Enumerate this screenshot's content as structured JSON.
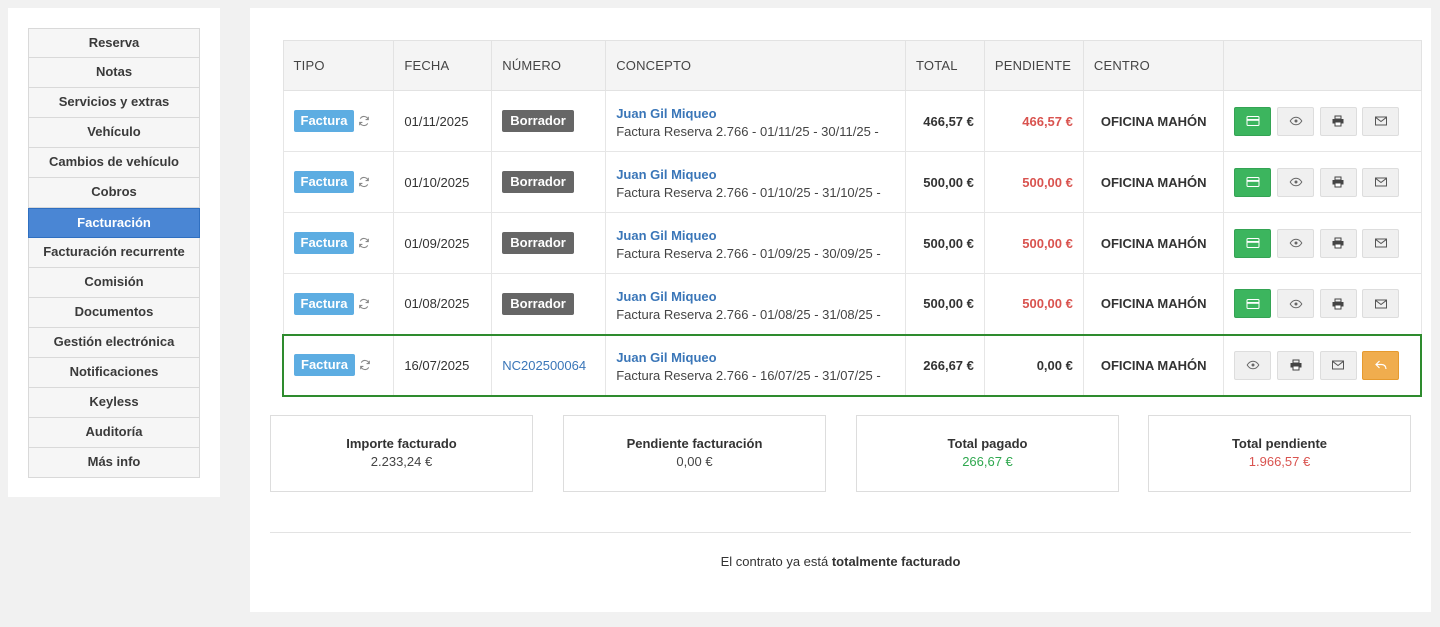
{
  "sidebar": {
    "items": [
      {
        "label": "Reserva",
        "active": false
      },
      {
        "label": "Notas",
        "active": false
      },
      {
        "label": "Servicios y extras",
        "active": false
      },
      {
        "label": "Vehículo",
        "active": false
      },
      {
        "label": "Cambios de vehículo",
        "active": false
      },
      {
        "label": "Cobros",
        "active": false
      },
      {
        "label": "Facturación",
        "active": true
      },
      {
        "label": "Facturación recurrente",
        "active": false
      },
      {
        "label": "Comisión",
        "active": false
      },
      {
        "label": "Documentos",
        "active": false
      },
      {
        "label": "Gestión electrónica",
        "active": false
      },
      {
        "label": "Notificaciones",
        "active": false
      },
      {
        "label": "Keyless",
        "active": false
      },
      {
        "label": "Auditoría",
        "active": false
      },
      {
        "label": "Más info",
        "active": false
      }
    ]
  },
  "table": {
    "headers": {
      "tipo": "TIPO",
      "fecha": "FECHA",
      "numero": "NÚMERO",
      "concepto": "CONCEPTO",
      "total": "TOTAL",
      "pendiente": "PENDIENTE",
      "centro": "CENTRO"
    },
    "rows": [
      {
        "tipo": "Factura",
        "fecha": "01/11/2025",
        "numero": "Borrador",
        "cliente": "Juan Gil Miqueo",
        "concepto": "Factura Reserva 2.766 - 01/11/25 - 30/11/25 -",
        "total": "466,57 €",
        "pendiente": "466,57 €",
        "centro": "OFICINA MAHÓN"
      },
      {
        "tipo": "Factura",
        "fecha": "01/10/2025",
        "numero": "Borrador",
        "cliente": "Juan Gil Miqueo",
        "concepto": "Factura Reserva 2.766 - 01/10/25 - 31/10/25 -",
        "total": "500,00 €",
        "pendiente": "500,00 €",
        "centro": "OFICINA MAHÓN"
      },
      {
        "tipo": "Factura",
        "fecha": "01/09/2025",
        "numero": "Borrador",
        "cliente": "Juan Gil Miqueo",
        "concepto": "Factura Reserva 2.766 - 01/09/25 - 30/09/25 -",
        "total": "500,00 €",
        "pendiente": "500,00 €",
        "centro": "OFICINA MAHÓN"
      },
      {
        "tipo": "Factura",
        "fecha": "01/08/2025",
        "numero": "Borrador",
        "cliente": "Juan Gil Miqueo",
        "concepto": "Factura Reserva 2.766 - 01/08/25 - 31/08/25 -",
        "total": "500,00 €",
        "pendiente": "500,00 €",
        "centro": "OFICINA MAHÓN"
      },
      {
        "tipo": "Factura",
        "fecha": "16/07/2025",
        "numero": "NC202500064",
        "cliente": "Juan Gil Miqueo",
        "concepto": "Factura Reserva 2.766 - 16/07/25 - 31/07/25 -",
        "total": "266,67 €",
        "pendiente": "0,00 €",
        "centro": "OFICINA MAHÓN"
      }
    ]
  },
  "summary": {
    "importe_facturado": {
      "label": "Importe facturado",
      "value": "2.233,24 €"
    },
    "pendiente_facturacion": {
      "label": "Pendiente facturación",
      "value": "0,00 €"
    },
    "total_pagado": {
      "label": "Total pagado",
      "value": "266,67 €"
    },
    "total_pendiente": {
      "label": "Total pendiente",
      "value": "1.966,57 €"
    }
  },
  "footer": {
    "prefix": "El contrato ya está ",
    "emphasis": "totalmente facturado"
  },
  "colors": {
    "accent": "#4a86d4",
    "factura_badge": "#5dade2",
    "borrador_badge": "#666666",
    "pay_button": "#3cb55e",
    "refund_button": "#f0ad4e",
    "pending_red": "#d9534f",
    "paid_green": "#2fa84f",
    "highlight_border": "#2e8b2e"
  },
  "icons": {
    "pay": "credit-card-icon",
    "view": "eye-icon",
    "print": "printer-icon",
    "email": "envelope-icon",
    "refund": "reply-arrow-icon",
    "recurring": "sync-icon"
  }
}
